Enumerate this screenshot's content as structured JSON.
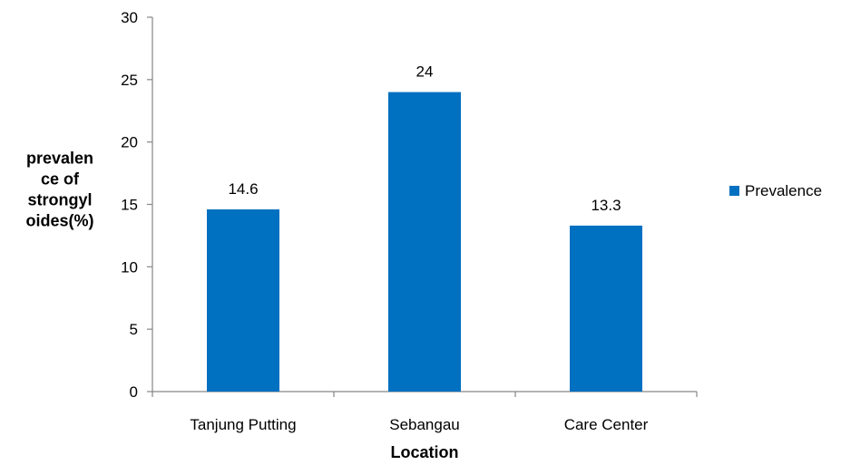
{
  "chart_data": {
    "type": "bar",
    "categories": [
      "Tanjung Putting",
      "Sebangau",
      "Care Center"
    ],
    "series": [
      {
        "name": "Prevalence",
        "values": [
          14.6,
          24,
          13.3
        ],
        "color": "#0070C0"
      }
    ],
    "data_labels": [
      "14.6",
      "24",
      "13.3"
    ],
    "xlabel": "Location",
    "ylabel_lines": [
      "prevalen",
      "ce of",
      "strongyl",
      "oides(%)"
    ],
    "ylim": [
      0,
      30
    ],
    "yticks": [
      0,
      5,
      10,
      15,
      20,
      25,
      30
    ],
    "grid": false,
    "legend_position": "right"
  }
}
